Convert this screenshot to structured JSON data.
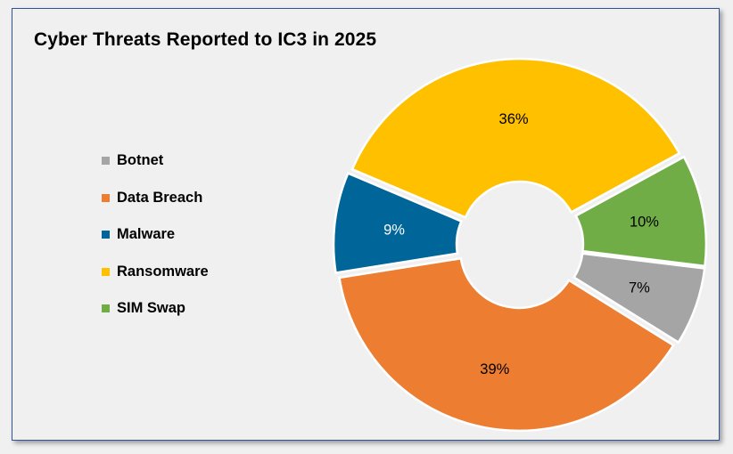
{
  "chart_data": {
    "type": "pie",
    "variant": "doughnut-exploded",
    "title": "Cyber Threats Reported to IC3 in 2025",
    "legend_position": "left",
    "slices": [
      {
        "label": "Botnet",
        "value": 7,
        "display": "7%",
        "color": "#a5a5a5",
        "label_color": "#000000"
      },
      {
        "label": "Data Breach",
        "value": 39,
        "display": "39%",
        "color": "#ed7d31",
        "label_color": "#000000"
      },
      {
        "label": "Malware",
        "value": 9,
        "display": "9%",
        "color": "#006699",
        "label_color": "#ffffff"
      },
      {
        "label": "Ransomware",
        "value": 36,
        "display": "36%",
        "color": "#ffc000",
        "label_color": "#000000"
      },
      {
        "label": "SIM Swap",
        "value": 10,
        "display": "10%",
        "color": "#70ad47",
        "label_color": "#000000"
      }
    ]
  }
}
